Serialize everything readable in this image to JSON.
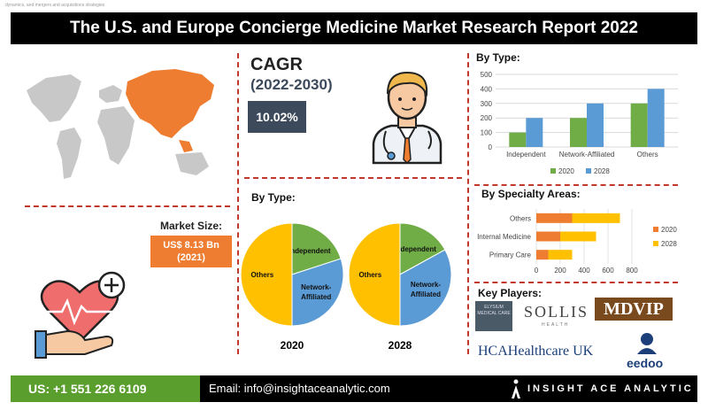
{
  "top_strip": "dynamics, and mergers and acquisitions strategies",
  "title": "The U.S. and Europe Concierge Medicine Market Research Report 2022",
  "cagr": {
    "label": "CAGR",
    "period": "(2022-2030)",
    "value": "10.02%"
  },
  "market_size": {
    "label": "Market Size:",
    "value": "US$ 8.13 Bn",
    "year": "(2021)"
  },
  "sections": {
    "type_bar": "By Type:",
    "type_pie": "By Type:",
    "specialty": "By Specialty Areas:",
    "key_players": "Key Players:"
  },
  "key_players": {
    "elysium": "ELYSIUM MEDICAL CARE",
    "sollis": "SOLLIS",
    "sollis_sub": "HEALTH",
    "mdvip": "MDVIP",
    "hca": "HCAHealthcare UK",
    "eedoo": "eedoo"
  },
  "footer": {
    "phone": "US: +1 551 226 6109",
    "email": "Email: info@insightaceanalytic.com",
    "brand": "INSIGHT ACE ANALYTIC"
  },
  "colors": {
    "orange": "#ee7d31",
    "yellow": "#ffc000",
    "green": "#70ad47",
    "blue": "#5b9bd5",
    "navy": "#3d4a5c",
    "dash": "#c0392b"
  },
  "icons": [
    "world-map-icon",
    "doctor-icon",
    "heart-hand-icon",
    "insightace-logo-icon"
  ],
  "chart_data": [
    {
      "type": "bar",
      "categories": [
        "Independent",
        "Network-Affiliated",
        "Others"
      ],
      "series": [
        {
          "name": "2020",
          "values": [
            100,
            200,
            300
          ]
        },
        {
          "name": "2028",
          "values": [
            200,
            300,
            400
          ]
        }
      ],
      "ylim": [
        0,
        500
      ],
      "yticks": [
        0,
        100,
        200,
        300,
        400,
        500
      ],
      "legend": "bottom"
    },
    {
      "type": "pie",
      "year": "2020",
      "slices": [
        {
          "label": "Independent",
          "value": 20
        },
        {
          "label": "Network-Affiliated",
          "value": 30
        },
        {
          "label": "Others",
          "value": 50
        }
      ]
    },
    {
      "type": "pie",
      "year": "2028",
      "slices": [
        {
          "label": "Independent",
          "value": 17
        },
        {
          "label": "Network-Affiliated",
          "value": 33
        },
        {
          "label": "Others",
          "value": 50
        }
      ]
    },
    {
      "type": "bar",
      "orientation": "horizontal",
      "stacked": true,
      "categories": [
        "Primary Care",
        "Internal Medicine",
        "Others"
      ],
      "series": [
        {
          "name": "2020",
          "values": [
            100,
            200,
            300
          ]
        },
        {
          "name": "2028",
          "values": [
            200,
            300,
            400
          ]
        }
      ],
      "xlim": [
        0,
        800
      ],
      "xticks": [
        0,
        200,
        400,
        600,
        800
      ],
      "legend": "right"
    }
  ]
}
